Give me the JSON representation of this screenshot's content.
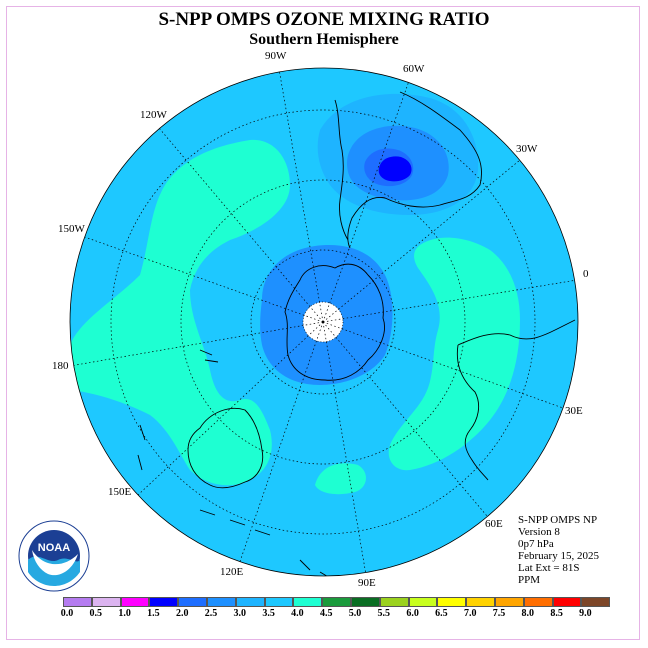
{
  "title": "S-NPP OMPS OZONE MIXING RATIO",
  "subtitle": "Southern Hemisphere",
  "longitude_labels": [
    "90W",
    "60W",
    "120W",
    "30W",
    "150W",
    "0",
    "180",
    "30E",
    "150E",
    "60E",
    "120E",
    "90E"
  ],
  "info": {
    "line1": "S-NPP OMPS NP",
    "line2": "Version 8",
    "line3": "0p7 hPa",
    "line4": "February 15, 2025",
    "line5": "Lat Ext = 81S",
    "line6": "PPM"
  },
  "logo_text": "NOAA",
  "colorbar": {
    "labels": [
      "0.0",
      "0.5",
      "1.0",
      "1.5",
      "2.0",
      "2.5",
      "3.0",
      "3.5",
      "4.0",
      "4.5",
      "5.0",
      "5.5",
      "6.0",
      "6.5",
      "7.0",
      "7.5",
      "8.0",
      "8.5",
      "9.0"
    ],
    "colors": [
      "#b57cf0",
      "#dcb4f0",
      "#ff00ff",
      "#0000ff",
      "#1e6eff",
      "#1e90ff",
      "#1eb4ff",
      "#1ec8ff",
      "#1effd2",
      "#1a9b3c",
      "#0a6e23",
      "#9bd21e",
      "#c8ff1e",
      "#ffff00",
      "#ffd200",
      "#ffa500",
      "#ff6e00",
      "#ff0000",
      "#7d4628"
    ]
  },
  "colors": {
    "background_field": "#1ec8ff",
    "level_3_0": "#1eb4ff",
    "level_2_5": "#1e90ff",
    "level_2_0": "#1e6eff",
    "level_1_5": "#0000ff",
    "level_4_0": "#1effd2"
  }
}
